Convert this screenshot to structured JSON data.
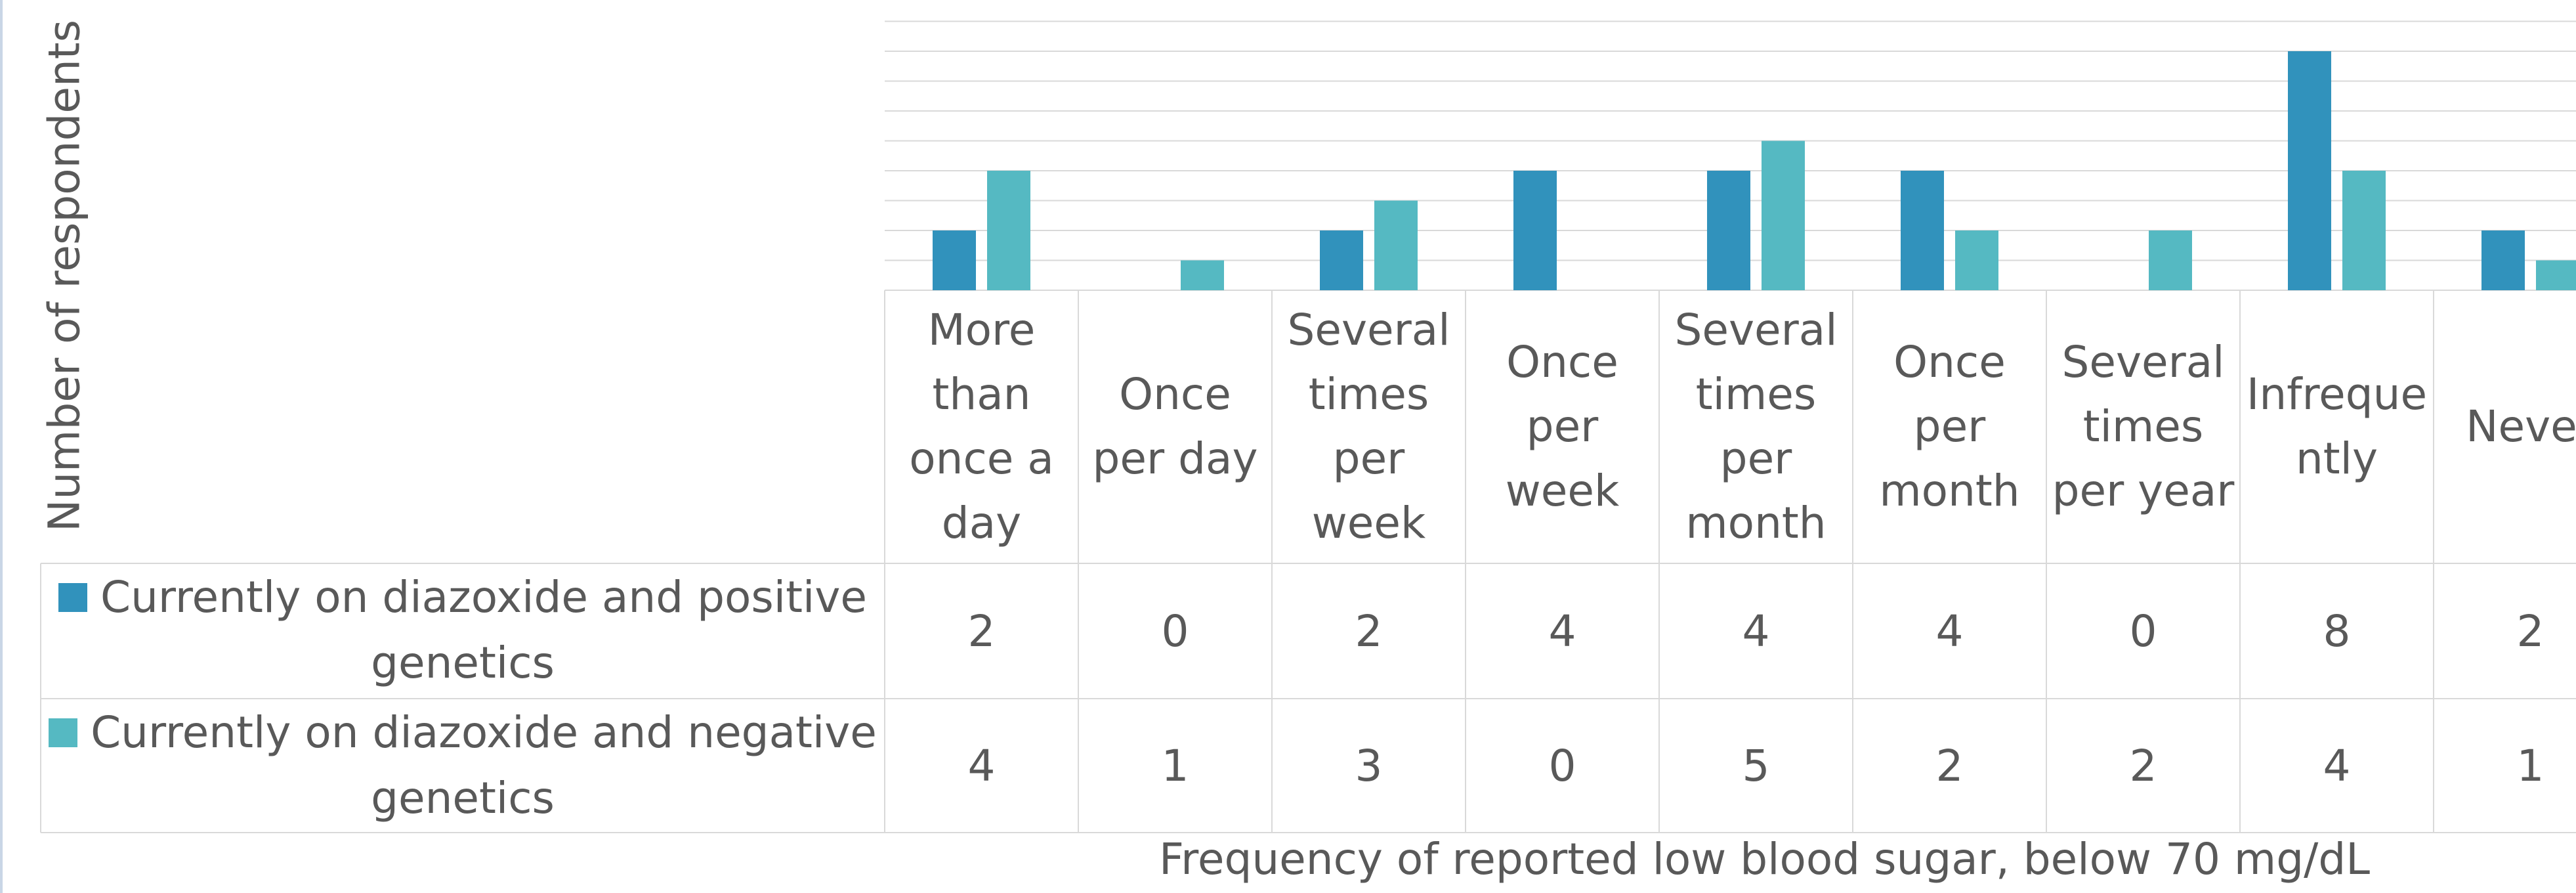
{
  "chart_data": {
    "type": "bar",
    "title": "",
    "xlabel": "Frequency of reported low blood sugar, below 70 mg/dL",
    "ylabel": "Number of respondents",
    "ylim": [
      0,
      9
    ],
    "grid": true,
    "legend_placement": "data-table-left",
    "categories": [
      "More than once a day",
      "Once per day",
      "Several times per week",
      "Once per week",
      "Several times per month",
      "Once per month",
      "Several times per year",
      "Infrequently",
      "Never"
    ],
    "category_lines": [
      [
        "More",
        "than",
        "once a",
        "day"
      ],
      [
        "Once",
        "per day"
      ],
      [
        "Several",
        "times",
        "per",
        "week"
      ],
      [
        "Once",
        "per",
        "week"
      ],
      [
        "Several",
        "times",
        "per",
        "month"
      ],
      [
        "Once",
        "per",
        "month"
      ],
      [
        "Several",
        "times",
        "per year"
      ],
      [
        "Infreque",
        "ntly"
      ],
      [
        "Never"
      ]
    ],
    "series": [
      {
        "name": "Currently on diazoxide and positive genetics",
        "name_lines": [
          "Currently on diazoxide and positive",
          "genetics"
        ],
        "color": "#3192BC",
        "values": [
          2,
          0,
          2,
          4,
          4,
          4,
          0,
          8,
          2
        ]
      },
      {
        "name": "Currently on diazoxide and negative genetics",
        "name_lines": [
          "Currently on diazoxide and negative",
          "genetics"
        ],
        "color": "#55B9C2",
        "values": [
          4,
          1,
          3,
          0,
          5,
          2,
          2,
          4,
          1
        ]
      }
    ]
  }
}
